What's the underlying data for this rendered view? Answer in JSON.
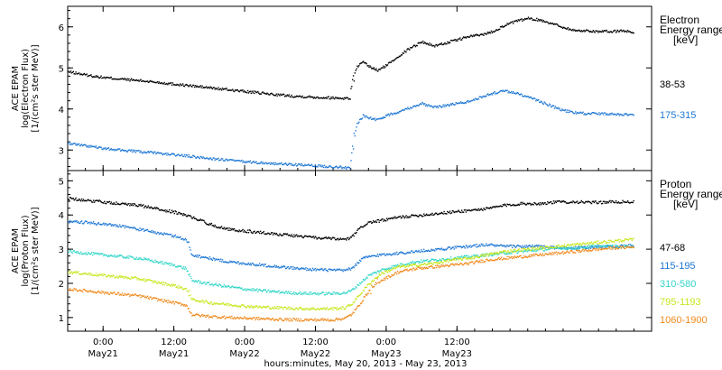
{
  "chart_data": [
    {
      "type": "scatter",
      "panel": "electron",
      "ylabel_lines": [
        "ACE EPAM",
        "log(Electron Flux)",
        "[1/(cm²s ster MeV)]"
      ],
      "ylim": [
        2.5,
        6.5
      ],
      "yticks": [
        3,
        4,
        5,
        6
      ],
      "xlim": [
        -6,
        93
      ],
      "legend_title_lines": [
        "Electron",
        "Energy range",
        "[keV]"
      ],
      "series": [
        {
          "name": "38-53",
          "color": "#000000",
          "x": [
            -6,
            -2,
            0,
            4,
            8,
            12,
            16,
            20,
            24,
            28,
            32,
            36,
            40,
            41.8,
            42.2,
            43,
            44,
            45,
            46.5,
            48,
            50,
            52,
            54,
            56,
            58,
            60,
            62,
            64,
            66,
            68,
            70,
            72,
            74,
            76,
            78,
            80,
            82,
            84,
            86,
            88,
            90
          ],
          "y": [
            4.92,
            4.82,
            4.78,
            4.73,
            4.68,
            4.62,
            4.56,
            4.5,
            4.44,
            4.38,
            4.33,
            4.3,
            4.28,
            4.27,
            4.7,
            5.05,
            5.15,
            5.05,
            4.95,
            5.08,
            5.3,
            5.5,
            5.65,
            5.55,
            5.62,
            5.7,
            5.78,
            5.82,
            5.9,
            6.05,
            6.15,
            6.22,
            6.18,
            6.1,
            6.0,
            5.92,
            5.92,
            5.9,
            5.9,
            5.92,
            5.88
          ]
        },
        {
          "name": "175-315",
          "color": "#1f78d4",
          "x": [
            -6,
            -2,
            0,
            4,
            8,
            12,
            16,
            20,
            24,
            28,
            32,
            36,
            40,
            41.8,
            42.2,
            43,
            44,
            45,
            46.5,
            48,
            50,
            52,
            54,
            56,
            58,
            60,
            62,
            64,
            66,
            68,
            70,
            72,
            74,
            76,
            78,
            80,
            82,
            84,
            86,
            88,
            90
          ],
          "y": [
            3.18,
            3.1,
            3.05,
            3.0,
            2.95,
            2.9,
            2.84,
            2.78,
            2.73,
            2.69,
            2.66,
            2.63,
            2.6,
            2.58,
            3.1,
            3.65,
            3.85,
            3.8,
            3.75,
            3.85,
            3.95,
            4.05,
            4.15,
            4.05,
            4.1,
            4.15,
            4.2,
            4.3,
            4.4,
            4.45,
            4.4,
            4.3,
            4.2,
            4.08,
            3.98,
            3.92,
            3.9,
            3.9,
            3.9,
            3.88,
            3.88
          ]
        }
      ]
    },
    {
      "type": "scatter",
      "panel": "proton",
      "ylabel_lines": [
        "ACE EPAM",
        "log(Proton Flux)",
        "[1/(cm²s ster MeV)]"
      ],
      "ylim": [
        0.6,
        5.3
      ],
      "yticks": [
        1,
        2,
        3,
        4,
        5
      ],
      "xlim": [
        -6,
        93
      ],
      "xticks": [
        {
          "x": 0,
          "line1": "0:00",
          "line2": "May21"
        },
        {
          "x": 12,
          "line1": "12:00",
          "line2": "May21"
        },
        {
          "x": 24,
          "line1": "0:00",
          "line2": "May22"
        },
        {
          "x": 36,
          "line1": "12:00",
          "line2": "May22"
        },
        {
          "x": 48,
          "line1": "0:00",
          "line2": "May23"
        },
        {
          "x": 60,
          "line1": "12:00",
          "line2": "May23"
        }
      ],
      "xlabel": "hours:minutes, May 20, 2013 - May 23, 2013",
      "legend_title_lines": [
        "Proton",
        "Energy range",
        "[keV]"
      ],
      "series": [
        {
          "name": "47-68",
          "color": "#000000",
          "x": [
            -6,
            -3,
            0,
            3,
            6,
            9,
            12,
            14,
            15,
            18,
            21,
            24,
            27,
            30,
            33,
            36,
            39,
            41,
            42,
            43,
            44,
            45,
            47,
            50,
            53,
            56,
            59,
            62,
            65,
            68,
            71,
            74,
            77,
            80,
            83,
            86,
            90
          ],
          "y": [
            4.5,
            4.45,
            4.4,
            4.35,
            4.3,
            4.2,
            4.1,
            4.0,
            3.95,
            3.75,
            3.6,
            3.55,
            3.5,
            3.45,
            3.4,
            3.35,
            3.32,
            3.3,
            3.35,
            3.55,
            3.7,
            3.8,
            3.85,
            3.95,
            4.0,
            4.05,
            4.1,
            4.15,
            4.2,
            4.3,
            4.35,
            4.35,
            4.4,
            4.4,
            4.38,
            4.4,
            4.4
          ]
        },
        {
          "name": "115-195",
          "color": "#1f78d4",
          "x": [
            -6,
            -3,
            0,
            3,
            6,
            9,
            12,
            14,
            15,
            18,
            21,
            24,
            27,
            30,
            33,
            36,
            39,
            41,
            42,
            43,
            44,
            45,
            47,
            50,
            53,
            56,
            59,
            62,
            65,
            68,
            71,
            74,
            77,
            80,
            83,
            86,
            90
          ],
          "y": [
            3.82,
            3.8,
            3.75,
            3.7,
            3.6,
            3.5,
            3.4,
            3.3,
            2.85,
            2.75,
            2.65,
            2.6,
            2.55,
            2.5,
            2.45,
            2.42,
            2.4,
            2.4,
            2.45,
            2.6,
            2.75,
            2.8,
            2.85,
            2.9,
            2.95,
            3.0,
            3.05,
            3.1,
            3.15,
            3.1,
            3.1,
            3.1,
            3.05,
            3.05,
            3.08,
            3.1,
            3.12
          ]
        },
        {
          "name": "310-580",
          "color": "#33d6c8",
          "x": [
            -6,
            -3,
            0,
            3,
            6,
            9,
            12,
            14,
            15,
            18,
            21,
            24,
            27,
            30,
            33,
            36,
            39,
            41,
            42,
            43,
            44,
            45,
            47,
            50,
            53,
            56,
            59,
            62,
            65,
            68,
            71,
            74,
            77,
            80,
            83,
            86,
            90
          ],
          "y": [
            2.95,
            2.9,
            2.85,
            2.8,
            2.75,
            2.65,
            2.55,
            2.45,
            2.1,
            2.0,
            1.92,
            1.85,
            1.8,
            1.76,
            1.73,
            1.72,
            1.72,
            1.74,
            1.8,
            1.95,
            2.1,
            2.25,
            2.4,
            2.55,
            2.65,
            2.7,
            2.75,
            2.8,
            2.85,
            2.9,
            2.95,
            3.0,
            3.05,
            3.05,
            3.1,
            3.1,
            3.1
          ]
        },
        {
          "name": "795-1193",
          "color": "#c8e61e",
          "x": [
            -6,
            -3,
            0,
            3,
            6,
            9,
            12,
            14,
            15,
            18,
            21,
            24,
            27,
            30,
            33,
            36,
            39,
            41,
            42,
            43,
            44,
            45,
            47,
            50,
            53,
            56,
            59,
            62,
            65,
            68,
            71,
            74,
            77,
            80,
            83,
            86,
            90
          ],
          "y": [
            2.35,
            2.3,
            2.25,
            2.2,
            2.15,
            2.05,
            1.95,
            1.85,
            1.55,
            1.45,
            1.4,
            1.35,
            1.32,
            1.3,
            1.28,
            1.27,
            1.28,
            1.3,
            1.4,
            1.6,
            1.8,
            2.0,
            2.3,
            2.5,
            2.55,
            2.6,
            2.7,
            2.75,
            2.85,
            2.95,
            3.0,
            3.05,
            3.1,
            3.15,
            3.2,
            3.25,
            3.3
          ]
        },
        {
          "name": "1060-1900",
          "color": "#f08a1e",
          "x": [
            -6,
            -3,
            0,
            3,
            6,
            9,
            12,
            14,
            15,
            18,
            21,
            24,
            27,
            30,
            33,
            36,
            39,
            41,
            42,
            43,
            44,
            45,
            47,
            50,
            53,
            56,
            59,
            62,
            65,
            68,
            71,
            74,
            77,
            80,
            83,
            86,
            90
          ],
          "y": [
            1.85,
            1.8,
            1.75,
            1.7,
            1.65,
            1.55,
            1.45,
            1.38,
            1.1,
            1.05,
            1.02,
            1.0,
            0.98,
            0.96,
            0.95,
            0.95,
            0.95,
            1.0,
            1.1,
            1.3,
            1.55,
            1.8,
            2.1,
            2.35,
            2.45,
            2.5,
            2.55,
            2.6,
            2.7,
            2.75,
            2.8,
            2.85,
            2.9,
            2.95,
            3.0,
            3.05,
            3.08
          ]
        }
      ]
    }
  ]
}
